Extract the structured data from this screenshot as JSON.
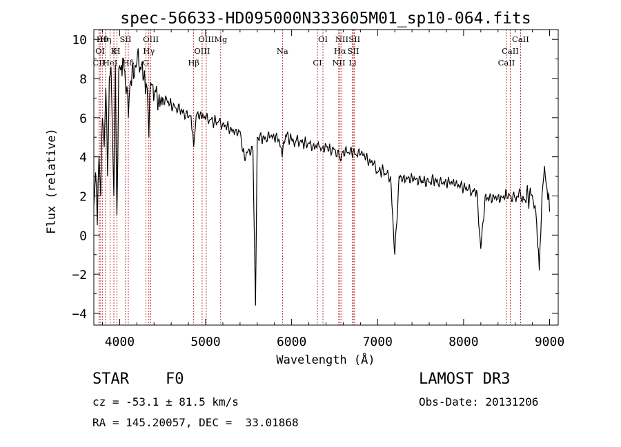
{
  "chart_data": {
    "type": "line",
    "title": "spec-56633-HD095000N333605M01_sp10-064.fits",
    "xlabel": "Wavelength (Å)",
    "ylabel": "Flux (relative)",
    "xlim": [
      3700,
      9100
    ],
    "ylim": [
      -4.6,
      10.5
    ],
    "xticks": [
      4000,
      5000,
      6000,
      7000,
      8000,
      9000
    ],
    "yticks": [
      -4,
      -2,
      0,
      2,
      4,
      6,
      8,
      10
    ],
    "series": [
      {
        "name": "flux",
        "x": [
          3700,
          3720,
          3740,
          3760,
          3780,
          3800,
          3820,
          3840,
          3860,
          3880,
          3900,
          3920,
          3933,
          3950,
          3968,
          3990,
          4020,
          4060,
          4101,
          4130,
          4170,
          4200,
          4240,
          4280,
          4300,
          4320,
          4340,
          4360,
          4380,
          4420,
          4460,
          4500,
          4550,
          4600,
          4650,
          4700,
          4750,
          4800,
          4830,
          4861,
          4890,
          4920,
          4960,
          5000,
          5050,
          5100,
          5150,
          5200,
          5250,
          5300,
          5350,
          5400,
          5450,
          5500,
          5550,
          5580,
          5600,
          5650,
          5700,
          5750,
          5800,
          5850,
          5890,
          5930,
          5980,
          6050,
          6100,
          6150,
          6200,
          6250,
          6300,
          6330,
          6360,
          6400,
          6450,
          6500,
          6562,
          6600,
          6650,
          6700,
          6750,
          6800,
          6850,
          6900,
          6950,
          7000,
          7050,
          7100,
          7150,
          7200,
          7250,
          7300,
          7350,
          7400,
          7450,
          7500,
          7550,
          7600,
          7650,
          7700,
          7750,
          7800,
          7850,
          7900,
          7950,
          8000,
          8050,
          8100,
          8150,
          8200,
          8250,
          8300,
          8350,
          8400,
          8450,
          8498,
          8542,
          8600,
          8662,
          8700,
          8750,
          8800,
          8830,
          8850,
          8880,
          8920,
          8950,
          8980,
          9000
        ],
        "y": [
          1.5,
          3.2,
          0.5,
          4.0,
          2.0,
          6.0,
          4.5,
          7.5,
          3.0,
          8.0,
          8.6,
          4.5,
          2.0,
          8.7,
          1.0,
          8.5,
          8.7,
          8.4,
          6.0,
          7.9,
          8.1,
          8.8,
          8.6,
          8.0,
          7.2,
          7.5,
          5.0,
          7.8,
          7.7,
          7.3,
          7.2,
          7.0,
          6.9,
          6.7,
          6.5,
          6.4,
          6.2,
          6.0,
          6.1,
          4.5,
          6.1,
          6.0,
          6.0,
          5.9,
          5.9,
          5.8,
          5.8,
          5.7,
          5.6,
          5.4,
          5.4,
          5.3,
          4.0,
          4.4,
          4.3,
          -3.6,
          5.0,
          4.9,
          4.9,
          5.0,
          4.9,
          4.9,
          4.0,
          5.1,
          4.9,
          4.8,
          4.8,
          4.7,
          4.7,
          4.6,
          4.6,
          4.5,
          4.5,
          4.6,
          4.4,
          4.4,
          3.9,
          4.3,
          4.2,
          4.2,
          4.1,
          4.1,
          4.0,
          3.7,
          3.6,
          3.2,
          3.3,
          3.1,
          3.0,
          -1.0,
          3.0,
          3.0,
          2.9,
          3.0,
          2.9,
          2.8,
          2.8,
          2.7,
          2.8,
          2.7,
          2.6,
          2.6,
          2.7,
          2.5,
          2.5,
          2.4,
          2.3,
          2.2,
          2.3,
          -0.7,
          2.0,
          1.9,
          2.0,
          2.0,
          1.9,
          2.2,
          2.0,
          1.9,
          2.1,
          1.8,
          1.9,
          2.0,
          1.5,
          0.6,
          -1.8,
          2.5,
          3.0,
          1.8,
          1.2
        ]
      }
    ],
    "line_markers": [
      {
        "name": "Hθ",
        "wavelength": 3798
      },
      {
        "name": "OI",
        "wavelength": 3773
      },
      {
        "name": "CII",
        "wavelength": 3760
      },
      {
        "name": "Hη",
        "wavelength": 3836
      },
      {
        "name": "K",
        "wavelength": 3933
      },
      {
        "name": "HeI",
        "wavelength": 3889
      },
      {
        "name": "SII",
        "wavelength": 4069
      },
      {
        "name": "H",
        "wavelength": 3968
      },
      {
        "name": "Hδ",
        "wavelength": 4101
      },
      {
        "name": "OIII",
        "wavelength": 4363
      },
      {
        "name": "Hγ",
        "wavelength": 4340
      },
      {
        "name": "G",
        "wavelength": 4305
      },
      {
        "name": "OIII",
        "wavelength": 5007
      },
      {
        "name": "OIII",
        "wavelength": 4959
      },
      {
        "name": "Hβ",
        "wavelength": 4861
      },
      {
        "name": "Mg",
        "wavelength": 5175
      },
      {
        "name": "Na",
        "wavelength": 5893
      },
      {
        "name": "CI",
        "wavelength": 6300
      },
      {
        "name": "OI",
        "wavelength": 6364
      },
      {
        "name": "Hα",
        "wavelength": 6563
      },
      {
        "name": "NII",
        "wavelength": 6548
      },
      {
        "name": "NII",
        "wavelength": 6584
      },
      {
        "name": "SII",
        "wavelength": 6717
      },
      {
        "name": "Li",
        "wavelength": 6708
      },
      {
        "name": "SII",
        "wavelength": 6731
      },
      {
        "name": "CaII",
        "wavelength": 8542
      },
      {
        "name": "CaII",
        "wavelength": 8498
      },
      {
        "name": "CaII",
        "wavelength": 8662
      }
    ]
  },
  "info": {
    "object_class": "STAR",
    "subclass": "F0",
    "survey": "LAMOST DR3",
    "cz": "cz = -53.1 ± 81.5 km/s",
    "obs_date": "Obs-Date: 20131206",
    "coords": "RA = 145.20057, DEC =  33.01868"
  },
  "colors": {
    "spectrum": "#000000",
    "marker": "#b00000",
    "axes": "#000000"
  }
}
